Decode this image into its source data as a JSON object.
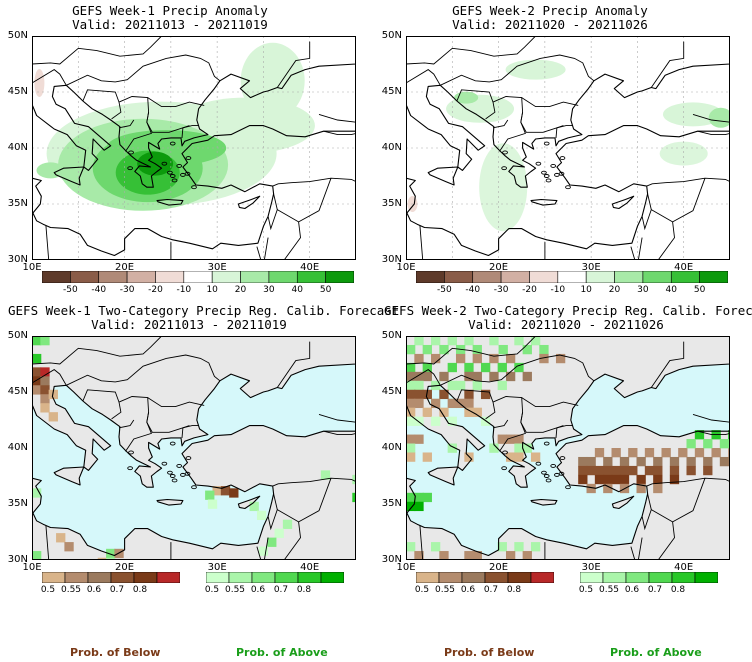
{
  "panels": [
    {
      "title": "GEFS Week-1 Precip Anomaly",
      "valid": "Valid: 20211013 - 20211019"
    },
    {
      "title": "GEFS Week-2 Precip Anomaly",
      "valid": "Valid: 20211020 - 20211026"
    },
    {
      "title": "GEFS Week-1 Two-Category Precip Reg. Calib. Forecast",
      "valid": "Valid: 20211013 - 20211019"
    },
    {
      "title": "GEFS Week-2 Two-Category Precip Reg. Calib. Forecast",
      "valid": "Valid: 20211020 - 20211026"
    }
  ],
  "axes": {
    "lat_labels": [
      "50N",
      "45N",
      "40N",
      "35N",
      "30N"
    ],
    "lon_labels": [
      "10E",
      "20E",
      "30E",
      "40E"
    ]
  },
  "anomaly_colorbar": {
    "labels": [
      "-50",
      "-40",
      "-30",
      "-20",
      "-10",
      "10",
      "20",
      "30",
      "40",
      "50"
    ],
    "colors": [
      "#5e3a2a",
      "#8a5c48",
      "#b08a78",
      "#d2b0a4",
      "#f0dcd6",
      "#ffffff",
      "#d8f5d8",
      "#a8eaa8",
      "#6ed86e",
      "#36c036",
      "#0c9a0c"
    ]
  },
  "prob_colorbar_below": {
    "labels": [
      "0.5",
      "0.55",
      "0.6",
      "0.7",
      "0.8"
    ],
    "colors": [
      "#d9b48a",
      "#b48c6e",
      "#9b7a5e",
      "#8a5230",
      "#7a3a18",
      "#b82828"
    ]
  },
  "prob_colorbar_above": {
    "labels": [
      "0.5",
      "0.55",
      "0.6",
      "0.7",
      "0.8"
    ],
    "colors": [
      "#ccffcc",
      "#aaf5aa",
      "#80e880",
      "#50d850",
      "#28c828",
      "#00b000"
    ]
  },
  "prob_labels": {
    "below": "Prob. of Below",
    "above": "Prob. of Above"
  },
  "colors": {
    "sea_prob": "#d6f8fa",
    "land_prob": "#e8e8e8",
    "border": "#000000"
  }
}
